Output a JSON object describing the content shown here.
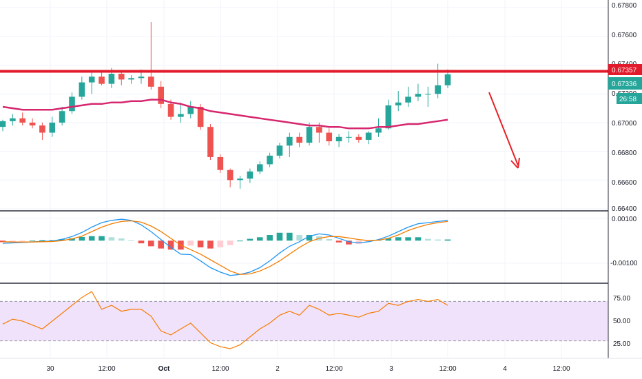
{
  "colors": {
    "up": "#26a69a",
    "down": "#ef5350",
    "ma": "#d6266e",
    "resistance": "#e21b2c",
    "arrow": "#e82127",
    "macd": "#2196f3",
    "signal": "#f57c00",
    "hist_up_strong": "#26a69a",
    "hist_up_weak": "#b2dfdb",
    "hist_down_strong": "#ef5350",
    "hist_down_weak": "#ffcdd2",
    "rsi_line": "#f57c00",
    "rsi_band": "#f1e2fb",
    "current_tag": "#26a69a",
    "resistance_tag": "#e21b2c"
  },
  "price_axis": {
    "ticks": [
      "0.67800",
      "0.67600",
      "0.67400",
      "0.67200",
      "0.67000",
      "0.66800",
      "0.66600",
      "0.66400"
    ]
  },
  "macd_axis": {
    "ticks": [
      "0.00100",
      "-0.00100"
    ]
  },
  "rsi_axis": {
    "ticks": [
      "75.00",
      "50.00",
      "25.00"
    ]
  },
  "x_axis": {
    "labels": [
      "30",
      "12:00",
      "Oct",
      "12:00",
      "2",
      "12:00",
      "3",
      "12:00",
      "4",
      "12:00"
    ]
  },
  "price_tags": {
    "resistance": "0.67357",
    "current": "0.67336",
    "countdown": "26:58"
  },
  "chart_data": [
    {
      "type": "candlestick",
      "title": "",
      "x": [
        "29 18:00",
        "29 20:00",
        "29 22:00",
        "30 00:00",
        "30 02:00",
        "30 04:00",
        "30 06:00",
        "30 08:00",
        "30 10:00",
        "30 12:00",
        "30 14:00",
        "30 16:00",
        "30 18:00",
        "30 20:00",
        "30 22:00",
        "Oct 00:00",
        "Oct 02:00",
        "Oct 04:00",
        "Oct 06:00",
        "Oct 08:00",
        "Oct 10:00",
        "Oct 12:00",
        "Oct 14:00",
        "Oct 16:00",
        "Oct 18:00",
        "Oct 20:00",
        "Oct 22:00",
        "2 00:00",
        "2 02:00",
        "2 04:00",
        "2 06:00",
        "2 08:00",
        "2 10:00",
        "2 12:00",
        "2 14:00",
        "2 16:00",
        "2 18:00",
        "2 20:00",
        "2 22:00",
        "3 00:00",
        "3 02:00",
        "3 04:00",
        "3 06:00",
        "3 08:00",
        "3 10:00",
        "3 12:00"
      ],
      "open": [
        0.6697,
        0.6701,
        0.6703,
        0.67,
        0.6698,
        0.6693,
        0.67,
        0.6708,
        0.6718,
        0.6728,
        0.6732,
        0.6727,
        0.6734,
        0.673,
        0.6731,
        0.6732,
        0.6725,
        0.6713,
        0.6704,
        0.6706,
        0.6711,
        0.6697,
        0.6676,
        0.6667,
        0.666,
        0.6661,
        0.6666,
        0.6671,
        0.6677,
        0.6684,
        0.669,
        0.6686,
        0.6697,
        0.6693,
        0.6687,
        0.669,
        0.669,
        0.6688,
        0.6693,
        0.6696,
        0.6712,
        0.6714,
        0.6718,
        0.672,
        0.672,
        0.6726
      ],
      "high": [
        0.6702,
        0.6706,
        0.6707,
        0.6703,
        0.67,
        0.6704,
        0.6711,
        0.6721,
        0.6732,
        0.6736,
        0.6735,
        0.6738,
        0.6736,
        0.6733,
        0.6737,
        0.677,
        0.6729,
        0.6716,
        0.6714,
        0.6715,
        0.6713,
        0.6699,
        0.6678,
        0.6668,
        0.6663,
        0.6668,
        0.6673,
        0.6679,
        0.6686,
        0.6693,
        0.6693,
        0.67,
        0.67,
        0.6696,
        0.6692,
        0.6694,
        0.6692,
        0.6694,
        0.6703,
        0.6716,
        0.6722,
        0.6725,
        0.6727,
        0.6725,
        0.6741,
        0.6737
      ],
      "low": [
        0.6694,
        0.6698,
        0.6698,
        0.6696,
        0.6688,
        0.669,
        0.6698,
        0.6706,
        0.6716,
        0.672,
        0.6726,
        0.6724,
        0.6726,
        0.6727,
        0.6727,
        0.6723,
        0.671,
        0.6702,
        0.67,
        0.6703,
        0.6695,
        0.6674,
        0.6665,
        0.6655,
        0.6654,
        0.6658,
        0.6664,
        0.6669,
        0.6675,
        0.6676,
        0.6683,
        0.6684,
        0.6686,
        0.6684,
        0.6683,
        0.6686,
        0.6686,
        0.6685,
        0.669,
        0.6695,
        0.6708,
        0.6711,
        0.6715,
        0.6711,
        0.6717,
        0.6724
      ],
      "close": [
        0.6701,
        0.6703,
        0.67,
        0.6698,
        0.6693,
        0.67,
        0.6708,
        0.6718,
        0.6728,
        0.6732,
        0.6727,
        0.6734,
        0.673,
        0.6731,
        0.6732,
        0.6725,
        0.6713,
        0.6704,
        0.6706,
        0.6711,
        0.6697,
        0.6676,
        0.6667,
        0.666,
        0.6661,
        0.6666,
        0.6671,
        0.6677,
        0.6684,
        0.669,
        0.6686,
        0.6697,
        0.6693,
        0.6687,
        0.669,
        0.669,
        0.6688,
        0.6693,
        0.6696,
        0.6712,
        0.6714,
        0.6718,
        0.672,
        0.672,
        0.6726,
        0.67336
      ],
      "moving_average": [
        0.6711,
        0.671,
        0.6709,
        0.6709,
        0.6709,
        0.6709,
        0.671,
        0.6711,
        0.6712,
        0.6713,
        0.6713,
        0.6714,
        0.6714,
        0.6715,
        0.6715,
        0.6716,
        0.6716,
        0.6714,
        0.6713,
        0.6711,
        0.671,
        0.6708,
        0.6707,
        0.6706,
        0.6705,
        0.6704,
        0.6703,
        0.6702,
        0.6701,
        0.67,
        0.6699,
        0.6698,
        0.6698,
        0.6697,
        0.6697,
        0.6696,
        0.6696,
        0.6696,
        0.6697,
        0.6697,
        0.6698,
        0.6699,
        0.6699,
        0.67,
        0.6701,
        0.6702
      ],
      "resistance_level": 0.67357,
      "ylim": [
        0.664,
        0.6782
      ]
    },
    {
      "type": "line",
      "title": "",
      "x_ref": "same as price x",
      "series": [
        {
          "values": [
            -0.00012,
            -0.0001,
            -8e-05,
            -6e-05,
            -3e-05,
            -2e-05,
            6e-05,
            0.00018,
            0.00036,
            0.0006,
            0.0008,
            0.0009,
            0.00095,
            0.0009,
            0.0007,
            0.0004,
            5e-05,
            -0.0003,
            -0.0006,
            -0.00062,
            -0.0009,
            -0.0012,
            -0.0014,
            -0.00155,
            -0.0015,
            -0.0014,
            -0.0012,
            -0.0009,
            -0.00055,
            -0.00025,
            -5e-05,
            0.0002,
            0.0003,
            0.00025,
            0.0001,
            -5e-05,
            -0.0001,
            -5e-05,
            5e-05,
            0.0002,
            0.0004,
            0.0006,
            0.00075,
            0.0008,
            0.00085,
            0.0009
          ]
        },
        {
          "values": [
            -5e-05,
            -6e-05,
            -6e-05,
            -6e-05,
            -5e-05,
            -4e-05,
            0.0,
            8e-05,
            0.0002,
            0.0004,
            0.0006,
            0.00075,
            0.00085,
            0.00088,
            0.00082,
            0.00065,
            0.0004,
            0.0001,
            -0.0002,
            -0.0004,
            -0.0006,
            -0.00085,
            -0.0011,
            -0.00135,
            -0.0015,
            -0.00148,
            -0.00135,
            -0.00115,
            -0.0009,
            -0.0006,
            -0.0003,
            -5e-05,
            0.0001,
            0.00018,
            0.00018,
            0.00012,
            5e-05,
            0.0,
            2e-05,
            0.0001,
            0.00025,
            0.00045,
            0.0006,
            0.00072,
            0.0008,
            0.00085
          ]
        }
      ],
      "histogram": [
        -7e-05,
        -4e-05,
        -2e-05,
        0.0,
        2e-05,
        2e-05,
        6e-05,
        0.0001,
        0.00016,
        0.0002,
        0.0002,
        0.00015,
        0.0001,
        2e-05,
        -0.00012,
        -0.00025,
        -0.00035,
        -0.0004,
        -0.0004,
        -0.00022,
        -0.0003,
        -0.00035,
        -0.0003,
        -0.0002,
        0.0,
        8e-05,
        0.00015,
        0.00025,
        0.00035,
        0.00035,
        0.00025,
        0.00025,
        0.0002,
        7e-05,
        -8e-05,
        -0.00017,
        -0.00015,
        -5e-05,
        3e-05,
        0.0001,
        0.00015,
        0.00015,
        0.00015,
        8e-05,
        5e-05,
        5e-05
      ],
      "ylim": [
        -0.0018,
        0.0012
      ]
    },
    {
      "type": "line",
      "title": "",
      "x_ref": "same as price x",
      "series": [
        {
          "values": [
            47,
            52,
            50,
            46,
            42,
            50,
            58,
            66,
            74,
            80,
            62,
            66,
            60,
            62,
            62,
            55,
            40,
            36,
            42,
            48,
            38,
            28,
            24,
            22,
            26,
            34,
            42,
            48,
            56,
            60,
            56,
            66,
            62,
            56,
            58,
            56,
            54,
            58,
            60,
            68,
            66,
            70,
            72,
            70,
            72,
            66
          ]
        }
      ],
      "band": [
        30,
        70
      ],
      "ylim": [
        15,
        85
      ]
    }
  ]
}
